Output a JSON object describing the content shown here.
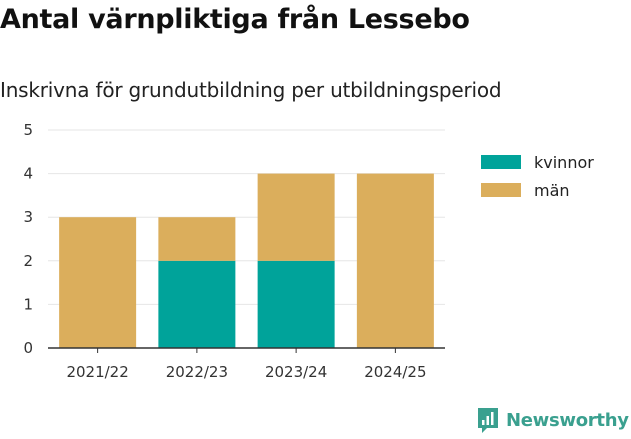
{
  "title": "Antal värnpliktiga från Lessebo",
  "subtitle": "Inskrivna för grundutbildning per utbildningsperiod",
  "brand": "Newsworthy",
  "colors": {
    "kvinnor": "#00A39A",
    "man": "#DBAE5C",
    "grid": "#e6e6e6",
    "axis": "#333333"
  },
  "chart_data": {
    "type": "bar",
    "stacked": true,
    "title": "Antal värnpliktiga från Lessebo",
    "subtitle": "Inskrivna för grundutbildning per utbildningsperiod",
    "categories": [
      "2021/22",
      "2022/23",
      "2023/24",
      "2024/25"
    ],
    "series": [
      {
        "name": "kvinnor",
        "values": [
          0,
          2,
          2,
          0
        ]
      },
      {
        "name": "män",
        "values": [
          3,
          1,
          2,
          4
        ]
      }
    ],
    "ylim": [
      0,
      5
    ],
    "yticks": [
      0,
      1,
      2,
      3,
      4,
      5
    ],
    "xlabel": "",
    "ylabel": "",
    "legend": "right",
    "grid": true
  }
}
